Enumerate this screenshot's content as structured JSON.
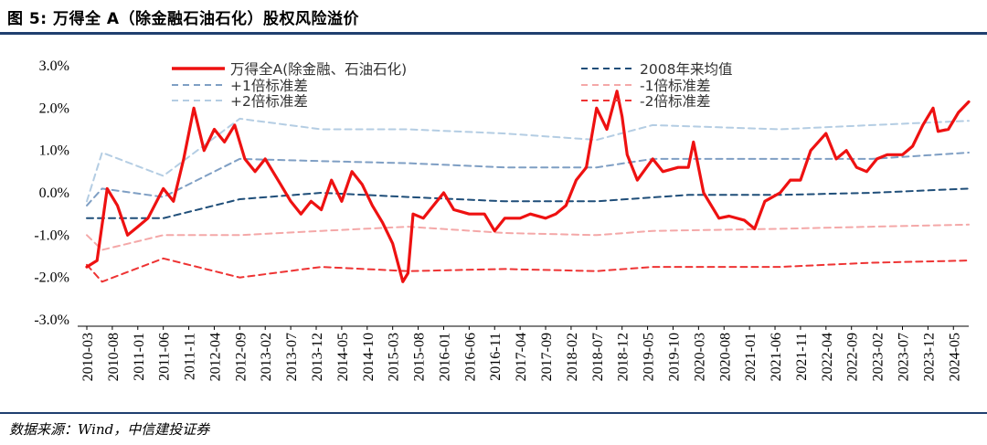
{
  "header": {
    "title": "图 5: 万得全 A（除金融石油石化）股权风险溢价"
  },
  "footer": {
    "source": "数据来源：Wind，中信建投证券"
  },
  "colors": {
    "main": "#ee1111",
    "avg": "#1f4e79",
    "plus1": "#7f9fc4",
    "plus2": "#b4cde3",
    "minus1": "#f4a8a8",
    "minus2": "#ee3333",
    "rule": "#1f3f6f"
  },
  "chart_data": {
    "type": "line",
    "yunit": "%",
    "ylim": [
      -3.0,
      3.0
    ],
    "yticks": [
      "3.0%",
      "2.0%",
      "1.0%",
      "0.0%",
      "-1.0%",
      "-2.0%",
      "-3.0%"
    ],
    "xticks": [
      "2010-03",
      "2010-08",
      "2011-01",
      "2011-06",
      "2011-11",
      "2012-04",
      "2012-09",
      "2013-02",
      "2013-07",
      "2013-12",
      "2014-05",
      "2014-10",
      "2015-03",
      "2015-08",
      "2016-01",
      "2016-06",
      "2016-11",
      "2017-04",
      "2017-09",
      "2018-02",
      "2018-07",
      "2018-12",
      "2019-05",
      "2019-10",
      "2020-03",
      "2020-08",
      "2021-01",
      "2021-06",
      "2021-11",
      "2022-04",
      "2022-09",
      "2023-02",
      "2023-07",
      "2023-12",
      "2024-05"
    ],
    "x_start": "2010-03",
    "x_end": "2024-08",
    "legend": [
      {
        "name": "万得全A(除金融、石油石化)",
        "style": "solid-thick",
        "color": "#ee1111"
      },
      {
        "name": "2008年来均值",
        "style": "dashed",
        "color": "#1f4e79"
      },
      {
        "name": "+1倍标准差",
        "style": "dashed",
        "color": "#7f9fc4"
      },
      {
        "name": "-1倍标准差",
        "style": "dashed",
        "color": "#f4a8a8"
      },
      {
        "name": "+2倍标准差",
        "style": "dashed",
        "color": "#b4cde3"
      },
      {
        "name": "-2倍标准差",
        "style": "dashed",
        "color": "#ee3333"
      }
    ],
    "series": [
      {
        "name": "万得全A(除金融、石油石化)",
        "x": [
          "2010-03",
          "2010-05",
          "2010-07",
          "2010-09",
          "2010-11",
          "2011-01",
          "2011-03",
          "2011-06",
          "2011-08",
          "2011-10",
          "2011-12",
          "2012-02",
          "2012-04",
          "2012-06",
          "2012-08",
          "2012-10",
          "2012-12",
          "2013-02",
          "2013-05",
          "2013-07",
          "2013-09",
          "2013-11",
          "2014-01",
          "2014-03",
          "2014-05",
          "2014-07",
          "2014-09",
          "2014-11",
          "2015-01",
          "2015-03",
          "2015-05",
          "2015-06",
          "2015-07",
          "2015-09",
          "2015-11",
          "2016-01",
          "2016-03",
          "2016-06",
          "2016-09",
          "2016-11",
          "2017-01",
          "2017-04",
          "2017-06",
          "2017-09",
          "2017-11",
          "2018-01",
          "2018-03",
          "2018-05",
          "2018-07",
          "2018-09",
          "2018-11",
          "2018-12",
          "2019-01",
          "2019-03",
          "2019-06",
          "2019-08",
          "2019-11",
          "2020-01",
          "2020-02",
          "2020-04",
          "2020-07",
          "2020-09",
          "2020-12",
          "2021-02",
          "2021-04",
          "2021-07",
          "2021-09",
          "2021-11",
          "2022-01",
          "2022-04",
          "2022-06",
          "2022-08",
          "2022-10",
          "2022-12",
          "2023-02",
          "2023-04",
          "2023-07",
          "2023-09",
          "2023-11",
          "2024-01",
          "2024-02",
          "2024-04",
          "2024-06",
          "2024-08"
        ],
        "values": [
          -1.75,
          -1.6,
          0.1,
          -0.3,
          -1.0,
          -0.8,
          -0.6,
          0.1,
          -0.2,
          0.8,
          2.0,
          1.0,
          1.5,
          1.2,
          1.6,
          0.8,
          0.5,
          0.8,
          0.2,
          -0.2,
          -0.5,
          -0.2,
          -0.4,
          0.3,
          -0.2,
          0.5,
          0.2,
          -0.3,
          -0.7,
          -1.2,
          -2.1,
          -1.9,
          -0.5,
          -0.6,
          -0.3,
          0.0,
          -0.4,
          -0.5,
          -0.5,
          -0.9,
          -0.6,
          -0.6,
          -0.5,
          -0.6,
          -0.5,
          -0.3,
          0.3,
          0.6,
          2.0,
          1.5,
          2.4,
          1.8,
          0.9,
          0.3,
          0.8,
          0.5,
          0.6,
          0.6,
          1.2,
          0.0,
          -0.6,
          -0.55,
          -0.65,
          -0.85,
          -0.2,
          0.0,
          0.3,
          0.3,
          1.0,
          1.4,
          0.8,
          1.0,
          0.6,
          0.5,
          0.8,
          0.9,
          0.9,
          1.1,
          1.6,
          2.0,
          1.45,
          1.5,
          1.9,
          2.15
        ]
      },
      {
        "name": "2008年来均值",
        "x": [
          "2010-03",
          "2011-06",
          "2012-09",
          "2014-01",
          "2015-06",
          "2017-01",
          "2018-07",
          "2020-01",
          "2021-07",
          "2023-01",
          "2024-08"
        ],
        "values": [
          -0.6,
          -0.6,
          -0.15,
          0.0,
          -0.1,
          -0.2,
          -0.2,
          -0.05,
          -0.05,
          0.0,
          0.1
        ]
      },
      {
        "name": "+1倍标准差",
        "x": [
          "2010-03",
          "2010-06",
          "2011-06",
          "2012-09",
          "2014-01",
          "2015-06",
          "2017-01",
          "2018-07",
          "2019-06",
          "2021-07",
          "2023-01",
          "2024-08"
        ],
        "values": [
          -0.3,
          0.1,
          -0.1,
          0.8,
          0.75,
          0.7,
          0.6,
          0.6,
          0.8,
          0.8,
          0.8,
          0.95
        ]
      },
      {
        "name": "+2倍标准差",
        "x": [
          "2010-03",
          "2010-06",
          "2011-06",
          "2012-09",
          "2014-01",
          "2015-06",
          "2017-01",
          "2018-07",
          "2019-06",
          "2021-07",
          "2023-01",
          "2024-08"
        ],
        "values": [
          -0.2,
          0.95,
          0.4,
          1.75,
          1.5,
          1.5,
          1.4,
          1.25,
          1.6,
          1.5,
          1.6,
          1.7
        ]
      },
      {
        "name": "-1倍标准差",
        "x": [
          "2010-03",
          "2010-06",
          "2011-06",
          "2012-09",
          "2014-01",
          "2015-06",
          "2017-01",
          "2018-07",
          "2019-06",
          "2021-07",
          "2023-01",
          "2024-08"
        ],
        "values": [
          -1.0,
          -1.35,
          -1.0,
          -1.0,
          -0.9,
          -0.8,
          -0.95,
          -1.0,
          -0.9,
          -0.85,
          -0.8,
          -0.75
        ]
      },
      {
        "name": "-2倍标准差",
        "x": [
          "2010-03",
          "2010-06",
          "2011-06",
          "2012-09",
          "2014-01",
          "2015-06",
          "2017-01",
          "2018-07",
          "2019-06",
          "2021-07",
          "2023-01",
          "2024-08"
        ],
        "values": [
          -1.7,
          -2.1,
          -1.55,
          -2.0,
          -1.75,
          -1.85,
          -1.8,
          -1.85,
          -1.75,
          -1.75,
          -1.65,
          -1.6
        ]
      }
    ]
  }
}
